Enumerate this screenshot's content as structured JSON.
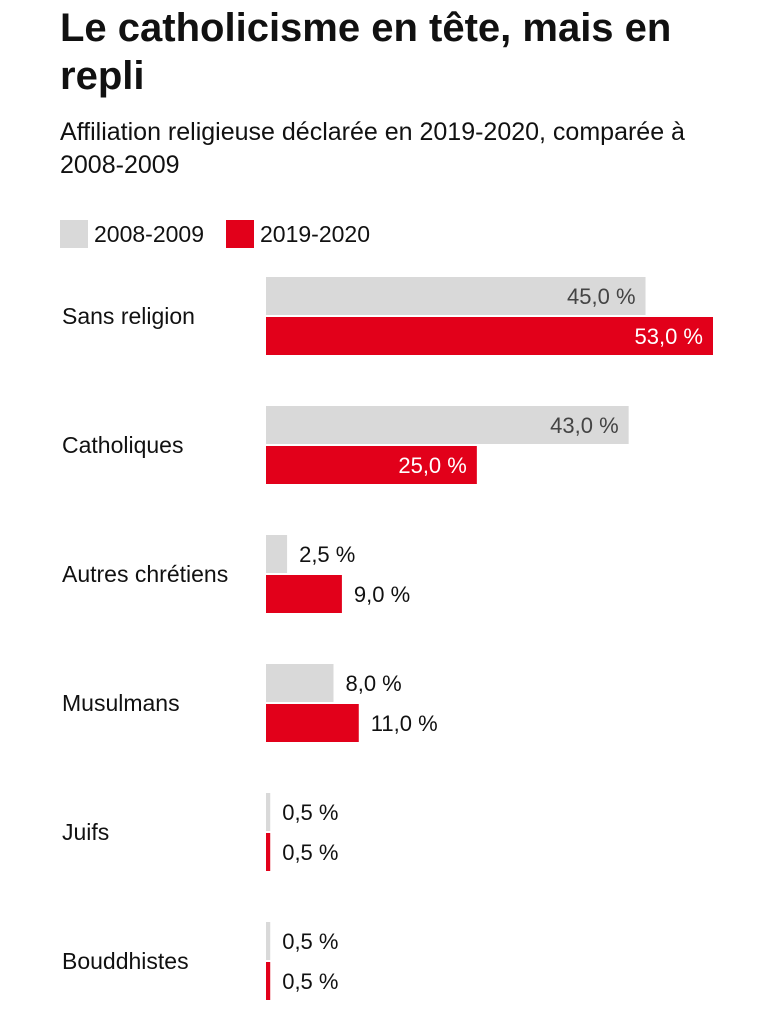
{
  "chart_data": {
    "type": "bar",
    "orientation": "horizontal",
    "title": "Le catholicisme en tête, mais en repli",
    "subtitle": "Affiliation religieuse déclarée en 2019-2020, comparée à 2008-2009",
    "categories": [
      "Sans religion",
      "Catholiques",
      "Autres chrétiens",
      "Musulmans",
      "Juifs",
      "Bouddhistes"
    ],
    "series": [
      {
        "name": "2008-2009",
        "color": "#d9d9d9",
        "values": [
          45.0,
          43.0,
          2.5,
          8.0,
          0.5,
          0.5
        ],
        "labels": [
          "45,0 %",
          "43,0 %",
          "2,5 %",
          "8,0 %",
          "0,5 %",
          "0,5 %"
        ]
      },
      {
        "name": "2019-2020",
        "color": "#e2001a",
        "values": [
          53.0,
          25.0,
          9.0,
          11.0,
          0.5,
          0.5
        ],
        "labels": [
          "53,0 %",
          "25,0 %",
          "9,0 %",
          "11,0 %",
          "0,5 %",
          "0,5 %"
        ]
      }
    ],
    "xlim": [
      0,
      53
    ],
    "grid": false,
    "legend_position": "top-left"
  }
}
